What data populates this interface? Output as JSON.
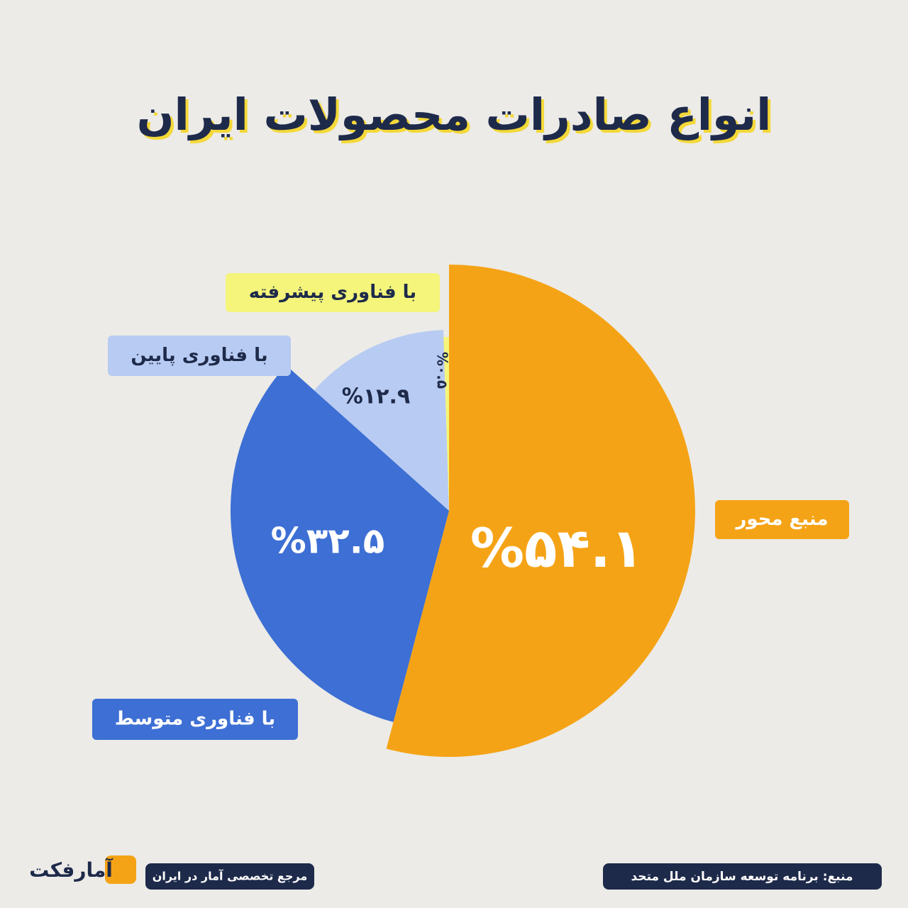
{
  "chart_data": {
    "type": "pie",
    "title": "انواع صادرات محصولات ایران",
    "categories": [
      "منبع محور",
      "با فناوری متوسط",
      "با فناوری پایین",
      "با فناوری پیشرفته"
    ],
    "values": [
      54.1,
      32.5,
      12.9,
      0.5
    ],
    "value_labels": [
      "%۵۴.۱",
      "%۳۲.۵",
      "%۱۲.۹",
      "%۰.۵"
    ],
    "colors": [
      "#f5a316",
      "#3d6fd4",
      "#b8cbf2",
      "#f4f57a"
    ]
  },
  "footer": {
    "tagline": "مرجع تخصصی آمار در ایران",
    "source": "منبع: برنامه توسعه سازمان ملل متحد",
    "logo": "آمارفکت"
  }
}
